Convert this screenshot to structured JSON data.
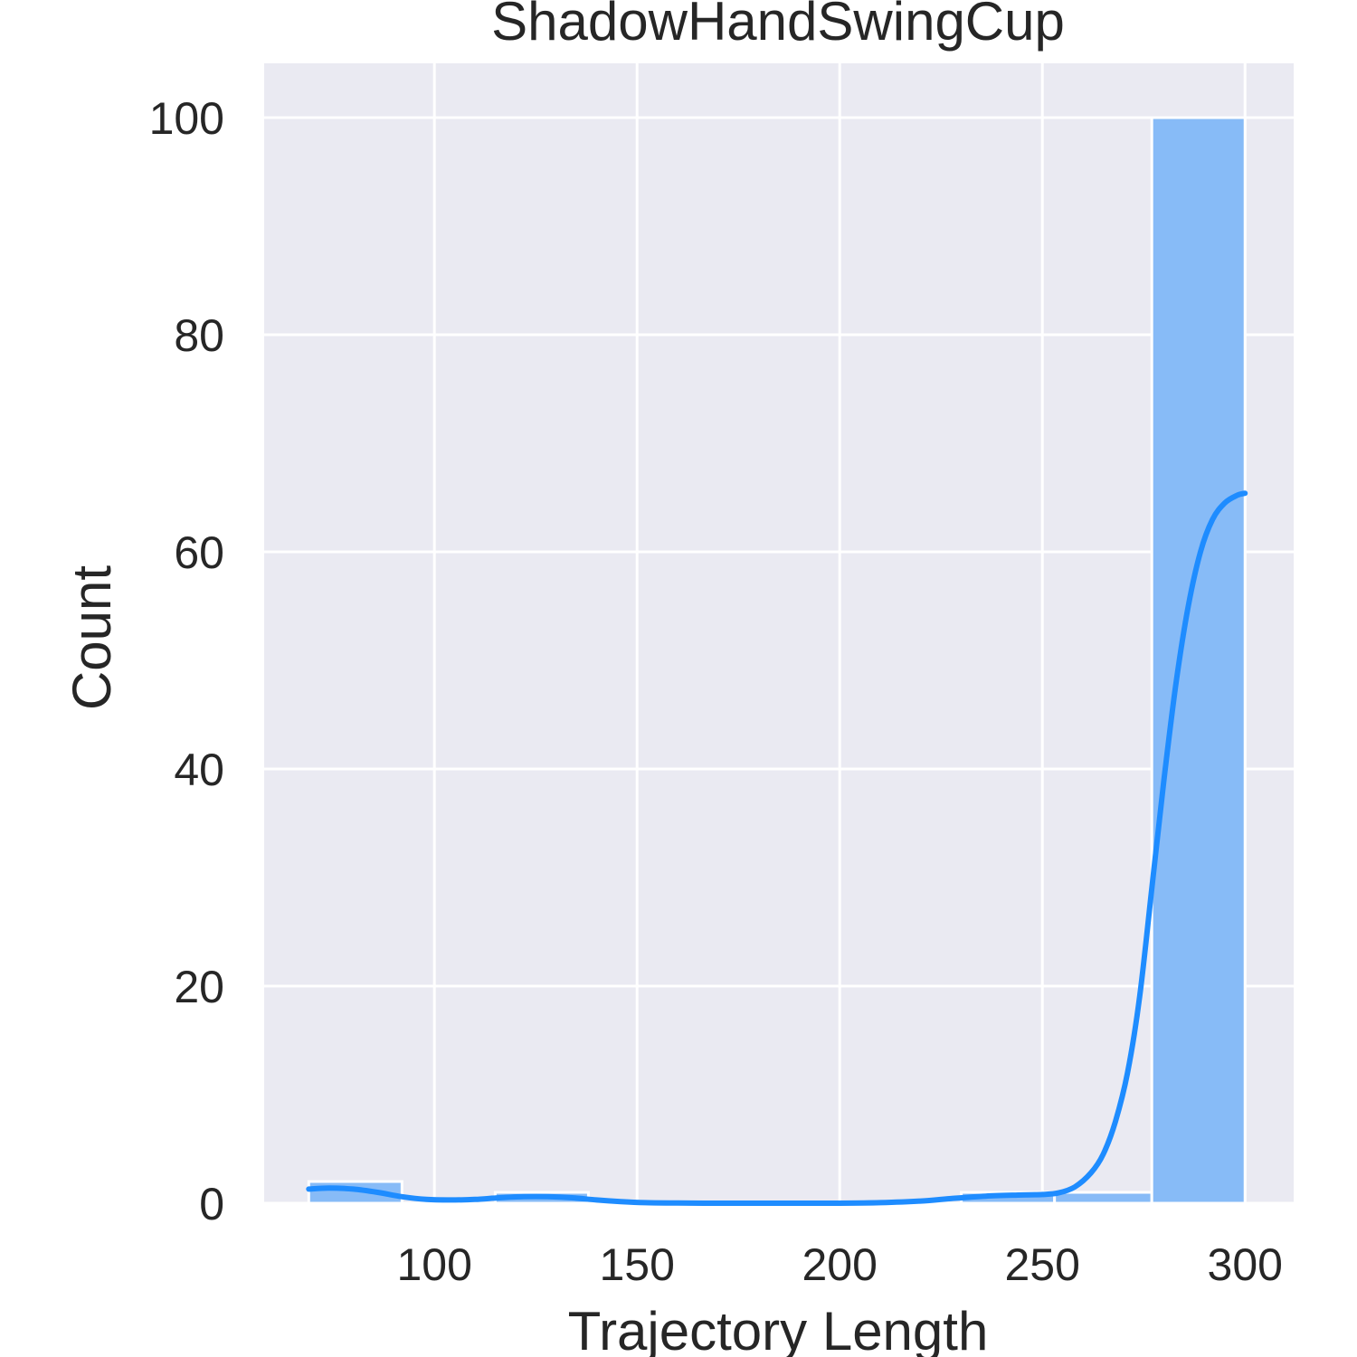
{
  "chart_data": {
    "type": "histogram",
    "title": "ShadowHandSwingCup",
    "xlabel": "Trajectory Length",
    "ylabel": "Count",
    "xlim": [
      58,
      312
    ],
    "ylim": [
      0,
      105
    ],
    "xticks": [
      100,
      150,
      200,
      250,
      300
    ],
    "yticks": [
      0,
      20,
      40,
      60,
      80,
      100
    ],
    "grid": true,
    "bins": [
      {
        "x0": 69,
        "x1": 92,
        "count": 2
      },
      {
        "x0": 92,
        "x1": 115,
        "count": 0
      },
      {
        "x0": 115,
        "x1": 138,
        "count": 1
      },
      {
        "x0": 138,
        "x1": 161,
        "count": 0
      },
      {
        "x0": 161,
        "x1": 184,
        "count": 0
      },
      {
        "x0": 184,
        "x1": 207,
        "count": 0
      },
      {
        "x0": 207,
        "x1": 230,
        "count": 0
      },
      {
        "x0": 230,
        "x1": 253,
        "count": 1
      },
      {
        "x0": 253,
        "x1": 277,
        "count": 1
      },
      {
        "x0": 277,
        "x1": 300,
        "count": 100
      }
    ],
    "kde": [
      [
        69,
        1.3
      ],
      [
        74,
        1.4
      ],
      [
        80,
        1.3
      ],
      [
        86,
        1.0
      ],
      [
        92,
        0.6
      ],
      [
        98,
        0.35
      ],
      [
        104,
        0.3
      ],
      [
        110,
        0.35
      ],
      [
        116,
        0.5
      ],
      [
        122,
        0.6
      ],
      [
        128,
        0.6
      ],
      [
        134,
        0.5
      ],
      [
        140,
        0.3
      ],
      [
        146,
        0.15
      ],
      [
        152,
        0.05
      ],
      [
        160,
        0.02
      ],
      [
        170,
        0.0
      ],
      [
        180,
        0.0
      ],
      [
        190,
        0.0
      ],
      [
        200,
        0.0
      ],
      [
        210,
        0.05
      ],
      [
        220,
        0.2
      ],
      [
        228,
        0.45
      ],
      [
        236,
        0.65
      ],
      [
        244,
        0.75
      ],
      [
        250,
        0.8
      ],
      [
        254,
        0.95
      ],
      [
        258,
        1.5
      ],
      [
        262,
        2.8
      ],
      [
        265,
        4.5
      ],
      [
        268,
        7.5
      ],
      [
        271,
        12
      ],
      [
        274,
        19
      ],
      [
        277,
        29
      ],
      [
        280,
        39
      ],
      [
        283,
        48
      ],
      [
        286,
        55
      ],
      [
        289,
        60
      ],
      [
        292,
        63
      ],
      [
        295,
        64.5
      ],
      [
        298,
        65.2
      ],
      [
        300,
        65.4
      ]
    ],
    "colors": {
      "bar_fill": "#87bbf7",
      "kde_line": "#1e8cff",
      "axes_bg": "#eaeaf2",
      "grid": "#ffffff"
    }
  }
}
